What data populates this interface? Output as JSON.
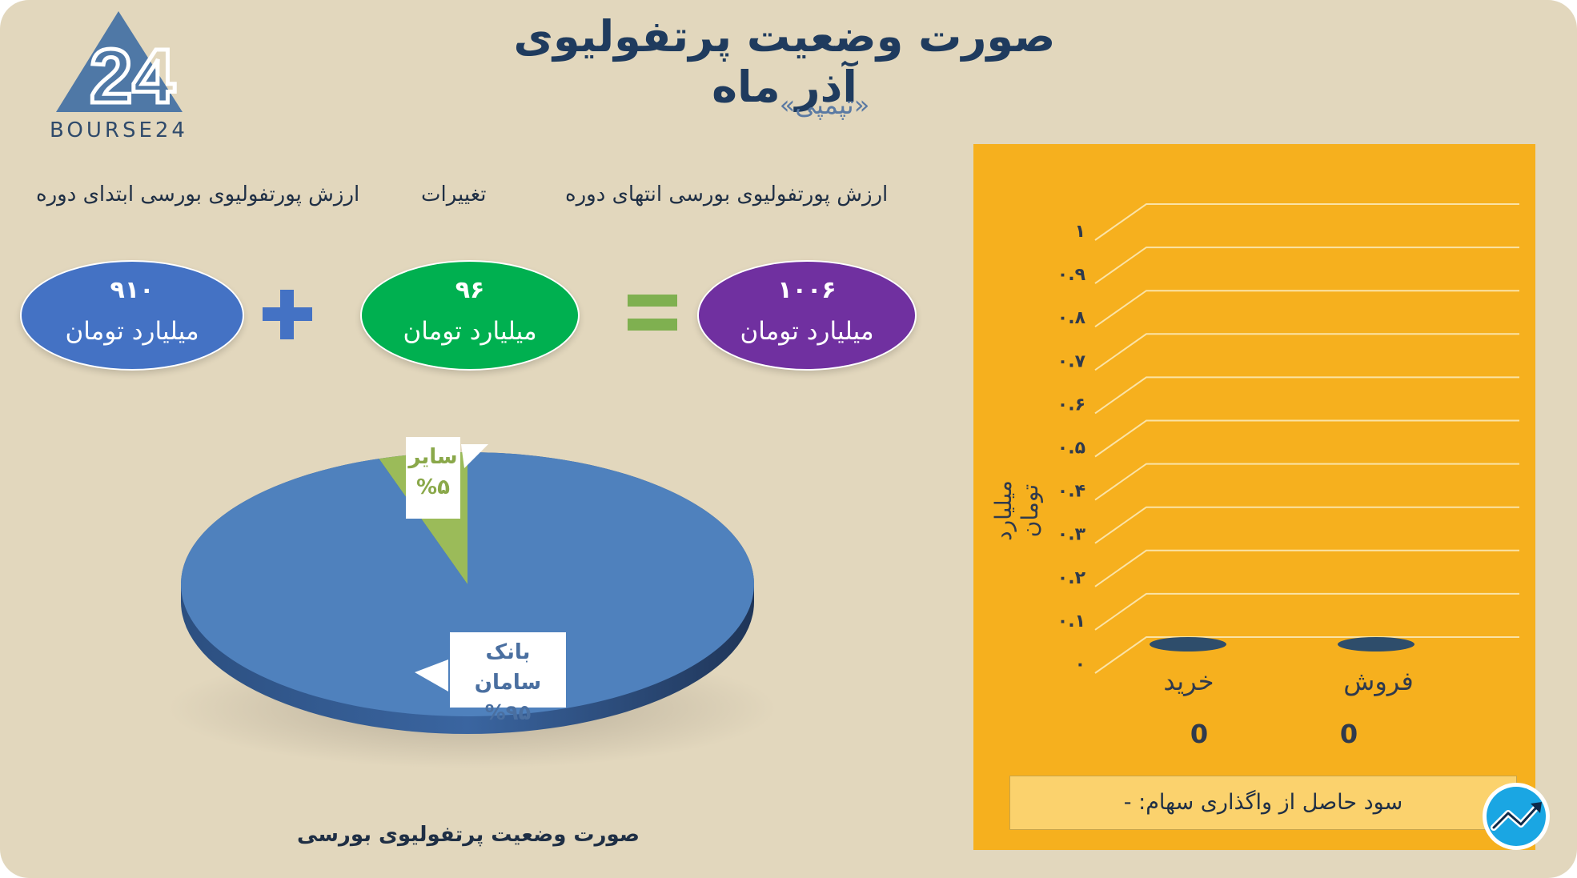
{
  "header": {
    "title": "صورت وضعیت پرتفولیوی آذر ماه",
    "subtitle": "«تپمپی»",
    "logo_text": "BOURSE24"
  },
  "summary": {
    "end_label": "ارزش پورتفولیوی بورسی انتهای دوره",
    "change_label": "تغییرات",
    "start_label": "ارزش پورتفولیوی بورسی ابتدای دوره",
    "end_value": "۱۰۰۶",
    "change_value": "۹۶",
    "start_value": "۹۱۰",
    "unit": "میلیارد تومان",
    "end_color": "#7030a0",
    "change_color": "#00b050",
    "start_color": "#4472c4"
  },
  "chart_data": [
    {
      "type": "pie",
      "title": "صورت وضعیت پرتفولیوی بورسی",
      "slices": [
        {
          "label": "بانک سامان",
          "percent_label": "%۹۵",
          "value": 95,
          "color": "#4f81bd"
        },
        {
          "label": "سایر",
          "percent_label": "%۵",
          "value": 5,
          "color": "#9bbb59"
        }
      ]
    },
    {
      "type": "bar",
      "categories": [
        "فروش",
        "خرید"
      ],
      "values": [
        0,
        0
      ],
      "value_labels": [
        "0",
        "0"
      ],
      "ylabel": "میلیارد تومان",
      "ylim": [
        0,
        1
      ],
      "yticks": [
        "۰",
        "۰.۱",
        "۰.۲",
        "۰.۳",
        "۰.۴",
        "۰.۵",
        "۰.۶",
        "۰.۷",
        "۰.۸",
        "۰.۹",
        "۱"
      ],
      "grid": true,
      "bar_color": "#2e4d6b"
    }
  ],
  "footer": {
    "profit_text": "سود حاصل از واگذاری سهام: -"
  }
}
